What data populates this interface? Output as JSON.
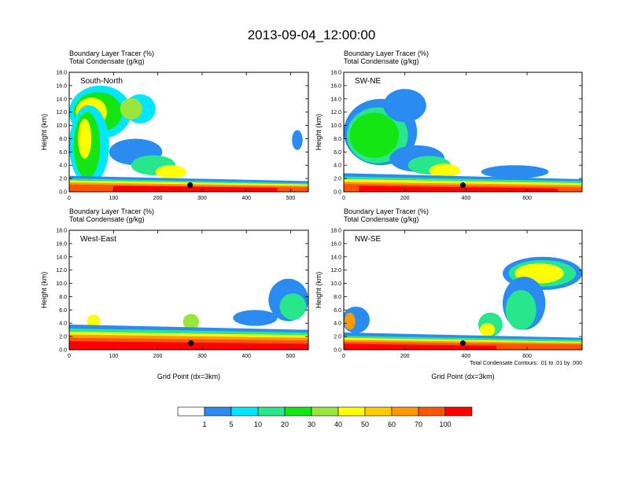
{
  "title": "2013-09-04_12:00:00",
  "colors": {
    "scale": [
      "#ffffff",
      "#2a8cf0",
      "#00e6ff",
      "#28e68c",
      "#14e614",
      "#9ae63c",
      "#ffff00",
      "#ffcc00",
      "#ff9900",
      "#ff5500",
      "#ff0000"
    ],
    "axis": "#000000",
    "marker": "#000000"
  },
  "chart_data": [
    {
      "type": "heatmap",
      "name": "South-North",
      "subtitle_1": "Boundary Layer Tracer   (%)",
      "subtitle_2": "Total Condensate   (g/kg)",
      "ylabel": "Height (km)",
      "xlabel": "",
      "xlim": [
        0,
        540
      ],
      "ylim": [
        0,
        18
      ],
      "xticks": [
        "0",
        "100",
        "200",
        "300",
        "400",
        "500"
      ],
      "yticks": [
        "0.0",
        "2.0",
        "4.0",
        "6.0",
        "8.0",
        "10.0",
        "12.0",
        "14.0",
        "16.0",
        "18.0"
      ],
      "marker_x": 273,
      "marker_y": 1.0,
      "features": [
        {
          "x0": 0,
          "x1": 540,
          "ytop0": 2.4,
          "ytop1": 1.6,
          "c": 1
        },
        {
          "x0": 0,
          "x1": 540,
          "ytop0": 2.0,
          "ytop1": 1.3,
          "c": 3
        },
        {
          "x0": 0,
          "x1": 540,
          "ytop0": 1.7,
          "ytop1": 1.1,
          "c": 6
        },
        {
          "x0": 0,
          "x1": 540,
          "ytop0": 1.4,
          "ytop1": 0.9,
          "c": 8
        },
        {
          "x0": 0,
          "x1": 540,
          "ytop0": 1.1,
          "ytop1": 0.7,
          "c": 9
        },
        {
          "x0": 100,
          "x1": 470,
          "ytop0": 0.9,
          "ytop1": 0.6,
          "c": 10
        }
      ],
      "blobs": [
        {
          "x": 70,
          "y": 12.0,
          "rx": 70,
          "ry": 4.0,
          "c": 2
        },
        {
          "x": 65,
          "y": 12.0,
          "rx": 55,
          "ry": 3.0,
          "c": 4
        },
        {
          "x": 50,
          "y": 12.0,
          "rx": 35,
          "ry": 2.2,
          "c": 6
        },
        {
          "x": 40,
          "y": 11.5,
          "rx": 20,
          "ry": 1.6,
          "c": 7
        },
        {
          "x": 45,
          "y": 7.0,
          "rx": 45,
          "ry": 6.0,
          "c": 2
        },
        {
          "x": 40,
          "y": 7.0,
          "rx": 30,
          "ry": 5.0,
          "c": 4
        },
        {
          "x": 35,
          "y": 8.0,
          "rx": 15,
          "ry": 3.0,
          "c": 6
        },
        {
          "x": 150,
          "y": 6.0,
          "rx": 60,
          "ry": 2.0,
          "c": 1
        },
        {
          "x": 190,
          "y": 4.0,
          "rx": 50,
          "ry": 1.5,
          "c": 3
        },
        {
          "x": 230,
          "y": 3.0,
          "rx": 35,
          "ry": 1.0,
          "c": 6
        },
        {
          "x": 515,
          "y": 7.8,
          "rx": 12,
          "ry": 1.5,
          "c": 1
        },
        {
          "x": 160,
          "y": 12.5,
          "rx": 35,
          "ry": 2.2,
          "c": 2
        },
        {
          "x": 140,
          "y": 12.5,
          "rx": 25,
          "ry": 1.6,
          "c": 5
        }
      ]
    },
    {
      "type": "heatmap",
      "name": "SW-NE",
      "subtitle_1": "Boundary Layer Tracer   (%)",
      "subtitle_2": "Total Condensate   (g/kg)",
      "ylabel": "Height (km)",
      "xlabel": "",
      "xlim": [
        0,
        780
      ],
      "ylim": [
        0,
        18
      ],
      "xticks": [
        "0",
        "200",
        "400",
        "600"
      ],
      "yticks": [
        "0.0",
        "2.0",
        "4.0",
        "6.0",
        "8.0",
        "10.0",
        "12.0",
        "14.0",
        "16.0",
        "18.0"
      ],
      "marker_x": 390,
      "marker_y": 1.0,
      "features": [
        {
          "x0": 0,
          "x1": 780,
          "ytop0": 2.8,
          "ytop1": 1.9,
          "c": 1
        },
        {
          "x0": 0,
          "x1": 780,
          "ytop0": 2.3,
          "ytop1": 1.6,
          "c": 3
        },
        {
          "x0": 0,
          "x1": 780,
          "ytop0": 1.9,
          "ytop1": 1.3,
          "c": 6
        },
        {
          "x0": 0,
          "x1": 780,
          "ytop0": 1.5,
          "ytop1": 1.0,
          "c": 8
        },
        {
          "x0": 0,
          "x1": 780,
          "ytop0": 1.2,
          "ytop1": 0.7,
          "c": 9
        },
        {
          "x0": 50,
          "x1": 700,
          "ytop0": 0.9,
          "ytop1": 0.5,
          "c": 10
        }
      ],
      "blobs": [
        {
          "x": 120,
          "y": 9.0,
          "rx": 120,
          "ry": 5.0,
          "c": 1
        },
        {
          "x": 110,
          "y": 8.5,
          "rx": 100,
          "ry": 4.2,
          "c": 3
        },
        {
          "x": 100,
          "y": 8.5,
          "rx": 80,
          "ry": 3.4,
          "c": 4
        },
        {
          "x": 200,
          "y": 13.0,
          "rx": 70,
          "ry": 2.5,
          "c": 1
        },
        {
          "x": 240,
          "y": 5.0,
          "rx": 90,
          "ry": 2.0,
          "c": 1
        },
        {
          "x": 280,
          "y": 4.0,
          "rx": 70,
          "ry": 1.4,
          "c": 3
        },
        {
          "x": 330,
          "y": 3.2,
          "rx": 50,
          "ry": 1.0,
          "c": 6
        },
        {
          "x": 560,
          "y": 3.0,
          "rx": 110,
          "ry": 1.0,
          "c": 1
        }
      ]
    },
    {
      "type": "heatmap",
      "name": "West-East",
      "subtitle_1": "Boundary Layer Tracer   (%)",
      "subtitle_2": "Total Condensate   (g/kg)",
      "ylabel": "Height (km)",
      "xlabel": "Grid Point (dx=3km)",
      "xlim": [
        0,
        540
      ],
      "ylim": [
        0,
        18
      ],
      "xticks": [
        "0",
        "100",
        "200",
        "300",
        "400",
        "500"
      ],
      "yticks": [
        "0.0",
        "2.0",
        "4.0",
        "6.0",
        "8.0",
        "10.0",
        "12.0",
        "14.0",
        "16.0",
        "18.0"
      ],
      "marker_x": 275,
      "marker_y": 1.0,
      "features": [
        {
          "x0": 0,
          "x1": 540,
          "ytop0": 3.8,
          "ytop1": 3.0,
          "c": 1
        },
        {
          "x0": 0,
          "x1": 540,
          "ytop0": 3.2,
          "ytop1": 2.6,
          "c": 3
        },
        {
          "x0": 0,
          "x1": 540,
          "ytop0": 2.7,
          "ytop1": 2.2,
          "c": 6
        },
        {
          "x0": 0,
          "x1": 540,
          "ytop0": 2.3,
          "ytop1": 1.8,
          "c": 8
        },
        {
          "x0": 0,
          "x1": 540,
          "ytop0": 1.8,
          "ytop1": 1.4,
          "c": 9
        },
        {
          "x0": 0,
          "x1": 540,
          "ytop0": 1.3,
          "ytop1": 0.9,
          "c": 10
        }
      ],
      "blobs": [
        {
          "x": 55,
          "y": 4.3,
          "rx": 15,
          "ry": 1.0,
          "c": 6
        },
        {
          "x": 275,
          "y": 4.2,
          "rx": 18,
          "ry": 1.2,
          "c": 5
        },
        {
          "x": 495,
          "y": 7.5,
          "rx": 45,
          "ry": 3.2,
          "c": 1
        },
        {
          "x": 505,
          "y": 6.5,
          "rx": 30,
          "ry": 2.0,
          "c": 3
        },
        {
          "x": 420,
          "y": 4.8,
          "rx": 50,
          "ry": 1.2,
          "c": 1
        }
      ]
    },
    {
      "type": "heatmap",
      "name": "NW-SE",
      "subtitle_1": "Boundary Layer Tracer   (%)",
      "subtitle_2": "Total Condensate   (g/kg)",
      "ylabel": "Height (km)",
      "xlabel": "Grid Point (dx=3km)",
      "xlim": [
        0,
        780
      ],
      "ylim": [
        0,
        18
      ],
      "xticks": [
        "0",
        "200",
        "400",
        "600"
      ],
      "yticks": [
        "0.0",
        "2.0",
        "4.0",
        "6.0",
        "8.0",
        "10.0",
        "12.0",
        "14.0",
        "16.0",
        "18.0"
      ],
      "marker_x": 390,
      "marker_y": 1.0,
      "note": "Total Condensate Contours: .01 to .01 by .000",
      "features": [
        {
          "x0": 0,
          "x1": 780,
          "ytop0": 2.6,
          "ytop1": 1.8,
          "c": 1
        },
        {
          "x0": 0,
          "x1": 780,
          "ytop0": 2.1,
          "ytop1": 1.5,
          "c": 3
        },
        {
          "x0": 0,
          "x1": 780,
          "ytop0": 1.8,
          "ytop1": 1.2,
          "c": 6
        },
        {
          "x0": 0,
          "x1": 780,
          "ytop0": 1.5,
          "ytop1": 1.0,
          "c": 8
        },
        {
          "x0": 0,
          "x1": 780,
          "ytop0": 1.2,
          "ytop1": 0.8,
          "c": 9
        },
        {
          "x0": 0,
          "x1": 500,
          "ytop0": 0.9,
          "ytop1": 0.6,
          "c": 10
        }
      ],
      "blobs": [
        {
          "x": 650,
          "y": 11.5,
          "rx": 130,
          "ry": 2.5,
          "c": 1
        },
        {
          "x": 650,
          "y": 11.5,
          "rx": 110,
          "ry": 2.0,
          "c": 3
        },
        {
          "x": 640,
          "y": 11.5,
          "rx": 80,
          "ry": 1.5,
          "c": 6
        },
        {
          "x": 590,
          "y": 7.0,
          "rx": 70,
          "ry": 4.0,
          "c": 1
        },
        {
          "x": 580,
          "y": 6.0,
          "rx": 50,
          "ry": 3.0,
          "c": 3
        },
        {
          "x": 40,
          "y": 4.5,
          "rx": 45,
          "ry": 2.0,
          "c": 1
        },
        {
          "x": 20,
          "y": 4.3,
          "rx": 18,
          "ry": 1.3,
          "c": 8
        },
        {
          "x": 480,
          "y": 3.8,
          "rx": 40,
          "ry": 1.8,
          "c": 3
        },
        {
          "x": 470,
          "y": 3.0,
          "rx": 25,
          "ry": 1.0,
          "c": 6
        }
      ]
    }
  ],
  "colorbar": {
    "labels": [
      "1",
      "5",
      "10",
      "20",
      "30",
      "40",
      "50",
      "60",
      "70",
      "100"
    ]
  }
}
